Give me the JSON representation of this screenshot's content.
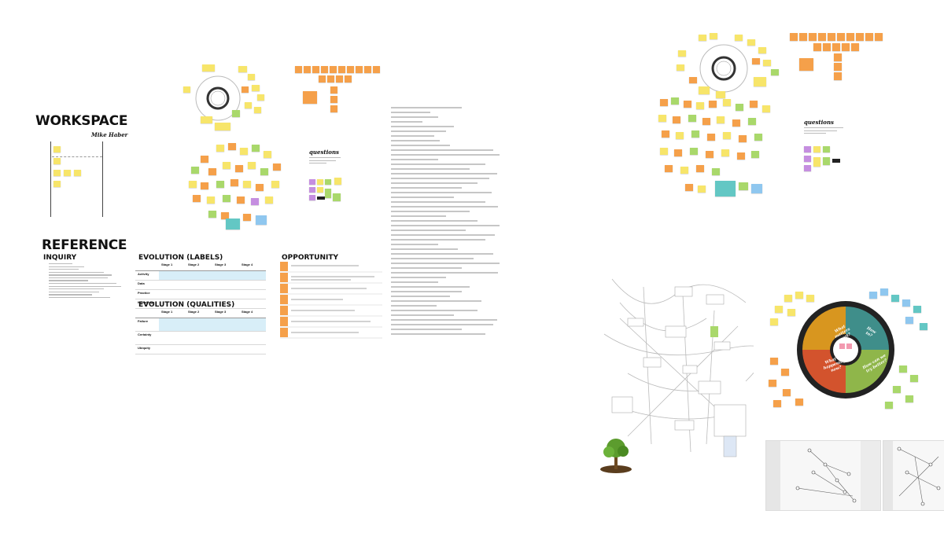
{
  "workspace": {
    "title": "WORKSPACE",
    "author": "Mike Haber"
  },
  "reference": {
    "title": "REFERENCE",
    "inquiry_title": "INQUIRY",
    "evolution_labels": {
      "title": "EVOLUTION (LABELS)",
      "columns": [
        "Stage 1",
        "Stage 2",
        "Stage 3",
        "Stage 4"
      ],
      "rows": [
        "Activity",
        "Data",
        "Practice",
        "Knowledge"
      ]
    },
    "evolution_qualities": {
      "title": "EVOLUTION (QUALITIES)",
      "columns": [
        "Stage 1",
        "Stage 2",
        "Stage 3",
        "Stage 4"
      ],
      "rows": [
        "Failure",
        "Certainty",
        "Ubiquity"
      ]
    },
    "opportunity_title": "OPPORTUNITY"
  },
  "questions_label": "questions",
  "wheel_labels": [
    "What matters most?",
    "How to?",
    "What is happening now?",
    "How can we try better?"
  ],
  "colors": {
    "yellow": "#f7e56a",
    "orange": "#f5a04a",
    "green": "#a9d86b",
    "purple": "#c58ee0",
    "teal": "#63c7c4",
    "blue": "#8fc7ef"
  }
}
